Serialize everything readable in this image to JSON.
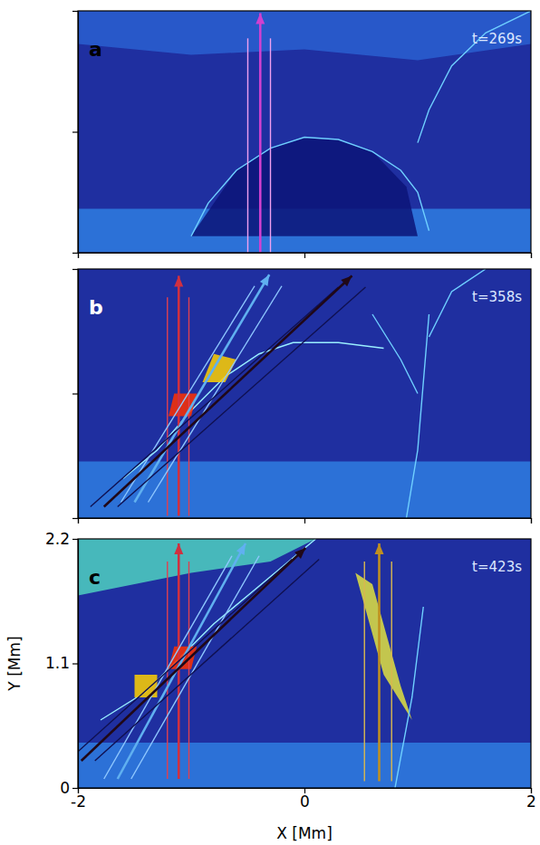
{
  "chart_data": [
    {
      "type": "image",
      "title": "a",
      "annotation": "t=269s",
      "xlim": [
        -2,
        2
      ],
      "ylim": [
        0,
        2.2
      ],
      "xticks": [
        -2,
        0,
        2
      ],
      "yticks": [
        0,
        1.1,
        2.2
      ],
      "tick_labels": false,
      "features": [
        {
          "type": "area",
          "color": "#2f7de0",
          "x": [
            -2,
            2,
            2,
            -2
          ],
          "y": [
            0,
            0,
            0.4,
            0.4
          ]
        },
        {
          "type": "area",
          "color": "#0c1478",
          "x": [
            -1.0,
            -0.6,
            -0.3,
            0,
            0.3,
            0.6,
            0.9,
            1.0
          ],
          "y": [
            0.15,
            0.75,
            0.95,
            1.05,
            1.03,
            0.92,
            0.6,
            0.15
          ]
        },
        {
          "type": "area",
          "color": "#2a5fd0",
          "x": [
            -2,
            -1,
            0,
            1,
            2,
            2,
            -2
          ],
          "y": [
            1.9,
            1.8,
            1.85,
            1.75,
            1.9,
            2.2,
            2.2
          ]
        },
        {
          "type": "line",
          "color": "#6fd0ff",
          "x": [
            -1.0,
            -0.85,
            -0.6,
            -0.3,
            0,
            0.3,
            0.6,
            0.85,
            1.0,
            1.1
          ],
          "y": [
            0.15,
            0.45,
            0.75,
            0.95,
            1.05,
            1.03,
            0.92,
            0.75,
            0.55,
            0.2
          ]
        },
        {
          "type": "line",
          "color": "#6fd0ff",
          "x": [
            1.0,
            1.1,
            1.3,
            1.6,
            2.0
          ],
          "y": [
            1.0,
            1.3,
            1.7,
            2.0,
            2.2
          ]
        },
        {
          "type": "line",
          "color": "#f0a0f0",
          "x": [
            -0.5,
            -0.5
          ],
          "y": [
            0,
            1.95
          ]
        },
        {
          "type": "line",
          "color": "#f0a0f0",
          "x": [
            -0.3,
            -0.3
          ],
          "y": [
            0,
            1.95
          ]
        },
        {
          "type": "arrow",
          "color": "#d040d0",
          "x": [
            -0.39,
            -0.39
          ],
          "y": [
            0,
            2.18
          ]
        }
      ]
    },
    {
      "type": "image",
      "title": "b",
      "annotation": "t=358s",
      "xlim": [
        -2,
        2
      ],
      "ylim": [
        0,
        2.2
      ],
      "xticks": [
        -2,
        0,
        2
      ],
      "yticks": [
        0,
        1.1,
        2.2
      ],
      "tick_labels": false,
      "features": [
        {
          "type": "area",
          "color": "#2f7de0",
          "x": [
            -2,
            2,
            2,
            -2
          ],
          "y": [
            0,
            0,
            0.5,
            0.5
          ]
        },
        {
          "type": "line",
          "color": "#9af0ff",
          "x": [
            -1.6,
            -1.3,
            -1.0,
            -0.7,
            -0.4,
            -0.1,
            0.3,
            0.7
          ],
          "y": [
            0.35,
            0.6,
            0.95,
            1.25,
            1.45,
            1.55,
            1.55,
            1.5
          ]
        },
        {
          "type": "area",
          "color": "#ffd000",
          "x": [
            -0.9,
            -0.7,
            -0.6,
            -0.8
          ],
          "y": [
            1.2,
            1.2,
            1.4,
            1.45
          ]
        },
        {
          "type": "area",
          "color": "#ff3000",
          "x": [
            -1.2,
            -1.0,
            -0.95,
            -1.15
          ],
          "y": [
            0.9,
            0.9,
            1.1,
            1.1
          ]
        },
        {
          "type": "line",
          "color": "#6fd0ff",
          "x": [
            0.9,
            1.0,
            1.05,
            1.1
          ],
          "y": [
            0,
            0.6,
            1.2,
            1.8
          ]
        },
        {
          "type": "line",
          "color": "#6fd0ff",
          "x": [
            0.6,
            0.85,
            1.0
          ],
          "y": [
            1.8,
            1.4,
            1.1
          ]
        },
        {
          "type": "line",
          "color": "#6fd0ff",
          "x": [
            1.1,
            1.3,
            1.6
          ],
          "y": [
            1.6,
            2.0,
            2.2
          ]
        },
        {
          "type": "line",
          "color": "#e04050",
          "x": [
            -1.21,
            -1.21
          ],
          "y": [
            0.02,
            1.95
          ]
        },
        {
          "type": "line",
          "color": "#e04050",
          "x": [
            -1.02,
            -1.02
          ],
          "y": [
            0.02,
            1.95
          ]
        },
        {
          "type": "arrow",
          "color": "#d03040",
          "x": [
            -1.11,
            -1.11
          ],
          "y": [
            0.02,
            2.14
          ]
        },
        {
          "type": "line",
          "color": "#8fc8ff",
          "x": [
            -1.62,
            -0.44
          ],
          "y": [
            0.14,
            2.05
          ]
        },
        {
          "type": "line",
          "color": "#8fc8ff",
          "x": [
            -1.38,
            -0.2
          ],
          "y": [
            0.14,
            2.05
          ]
        },
        {
          "type": "arrow",
          "color": "#60b0f0",
          "x": [
            -1.5,
            -0.31
          ],
          "y": [
            0.14,
            2.15
          ]
        },
        {
          "type": "line",
          "color": "#101050",
          "x": [
            -1.89,
            0.3
          ],
          "y": [
            0.1,
            2.04
          ]
        },
        {
          "type": "line",
          "color": "#101050",
          "x": [
            -1.65,
            0.54
          ],
          "y": [
            0.1,
            2.04
          ]
        },
        {
          "type": "arrow",
          "color": "#200818",
          "x": [
            -1.77,
            0.42
          ],
          "y": [
            0.1,
            2.14
          ]
        }
      ]
    },
    {
      "type": "image",
      "title": "c",
      "annotation": "t=423s",
      "xlim": [
        -2,
        2
      ],
      "ylim": [
        0,
        2.2
      ],
      "xticks": [
        -2,
        0,
        2
      ],
      "yticks": [
        0,
        1.1,
        2.2
      ],
      "tick_labels": true,
      "x_label": "X [Mm]",
      "y_label": "Y [Mm]",
      "features": [
        {
          "type": "area",
          "color": "#2f7de0",
          "x": [
            -2,
            2,
            2,
            -2
          ],
          "y": [
            0,
            0,
            0.4,
            0.4
          ]
        },
        {
          "type": "area",
          "color": "#4fd0c0",
          "x": [
            -2,
            0.1,
            -0.3,
            -1.0,
            -2
          ],
          "y": [
            2.2,
            2.2,
            2.0,
            1.9,
            1.7
          ]
        },
        {
          "type": "line",
          "color": "#9af0ff",
          "x": [
            -1.8,
            -1.4,
            -1.1,
            -0.8,
            -0.5,
            -0.2,
            0.1
          ],
          "y": [
            0.6,
            0.85,
            1.15,
            1.45,
            1.7,
            1.95,
            2.2
          ]
        },
        {
          "type": "area",
          "color": "#ff3000",
          "x": [
            -1.2,
            -1.0,
            -0.95,
            -1.15
          ],
          "y": [
            1.05,
            1.05,
            1.25,
            1.25
          ]
        },
        {
          "type": "area",
          "color": "#ffd000",
          "x": [
            -1.5,
            -1.3,
            -1.3,
            -1.5
          ],
          "y": [
            0.8,
            0.8,
            1.0,
            1.0
          ]
        },
        {
          "type": "area",
          "color": "#e0e040",
          "x": [
            0.45,
            0.7,
            0.95,
            0.85,
            0.6
          ],
          "y": [
            1.9,
            1.0,
            0.6,
            0.9,
            1.8
          ]
        },
        {
          "type": "line",
          "color": "#6fd0ff",
          "x": [
            0.8,
            0.95,
            1.05
          ],
          "y": [
            0,
            0.8,
            1.6
          ]
        },
        {
          "type": "line",
          "color": "#e04050",
          "x": [
            -1.21,
            -1.21
          ],
          "y": [
            0.08,
            2.0
          ]
        },
        {
          "type": "line",
          "color": "#e04050",
          "x": [
            -1.02,
            -1.02
          ],
          "y": [
            0.08,
            2.0
          ]
        },
        {
          "type": "arrow",
          "color": "#d03040",
          "x": [
            -1.11,
            -1.11
          ],
          "y": [
            0.08,
            2.16
          ]
        },
        {
          "type": "line",
          "color": "#8fc8ff",
          "x": [
            -1.77,
            -0.64
          ],
          "y": [
            0.08,
            2.05
          ]
        },
        {
          "type": "line",
          "color": "#8fc8ff",
          "x": [
            -1.53,
            -0.4
          ],
          "y": [
            0.08,
            2.05
          ]
        },
        {
          "type": "arrow",
          "color": "#60b0f0",
          "x": [
            -1.65,
            -0.52
          ],
          "y": [
            0.08,
            2.16
          ]
        },
        {
          "type": "line",
          "color": "#101050",
          "x": [
            -2.09,
            -0.11
          ],
          "y": [
            0.24,
            2.02
          ]
        },
        {
          "type": "line",
          "color": "#101050",
          "x": [
            -1.85,
            0.13
          ],
          "y": [
            0.24,
            2.02
          ]
        },
        {
          "type": "arrow",
          "color": "#200818",
          "x": [
            -1.97,
            0.01
          ],
          "y": [
            0.24,
            2.12
          ]
        },
        {
          "type": "line",
          "color": "#d8b850",
          "x": [
            0.53,
            0.53
          ],
          "y": [
            0.06,
            2.0
          ]
        },
        {
          "type": "line",
          "color": "#d8b850",
          "x": [
            0.77,
            0.77
          ],
          "y": [
            0.06,
            2.0
          ]
        },
        {
          "type": "arrow",
          "color": "#c09020",
          "x": [
            0.66,
            0.66
          ],
          "y": [
            0.06,
            2.16
          ]
        }
      ]
    }
  ]
}
